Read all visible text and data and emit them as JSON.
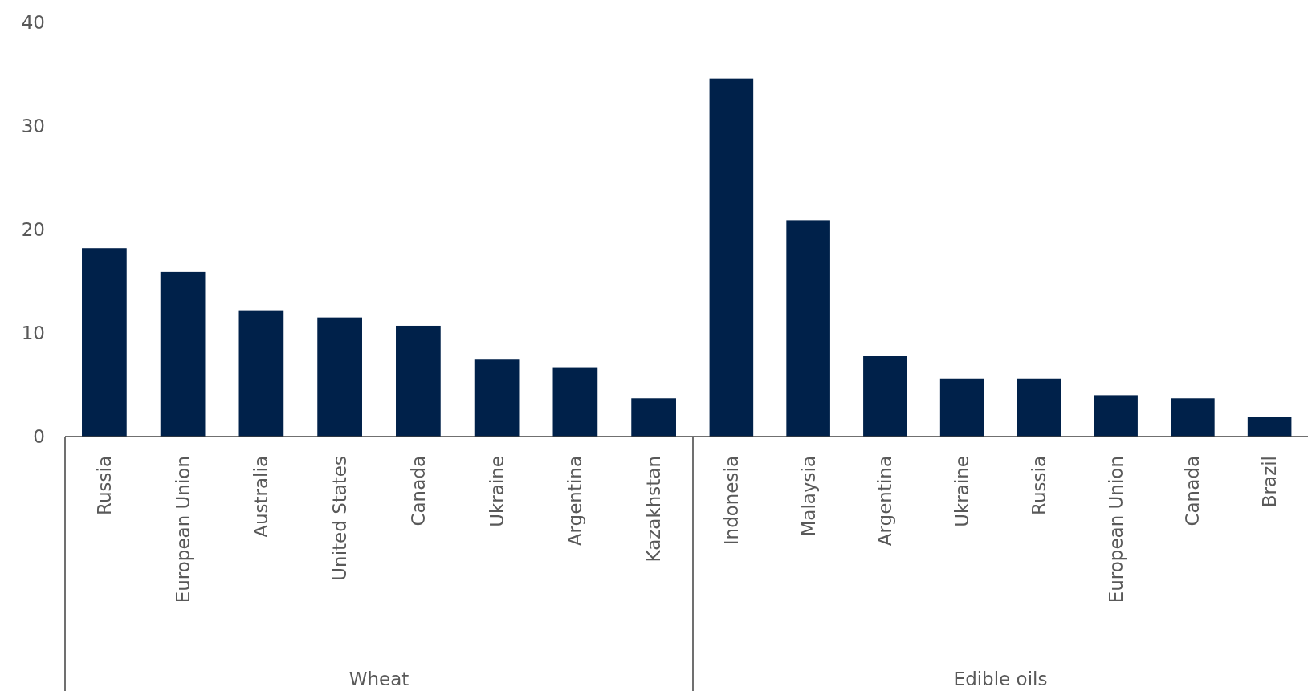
{
  "chart_data": [
    {
      "type": "bar",
      "xlabel": "Wheat",
      "categories": [
        "Russia",
        "European Union",
        "Australia",
        "United States",
        "Canada",
        "Ukraine",
        "Argentina",
        "Kazakhstan"
      ],
      "values": [
        18.2,
        15.9,
        12.2,
        11.5,
        10.7,
        7.5,
        6.7,
        3.7
      ],
      "color": "#00214a",
      "ylim": [
        0,
        40
      ],
      "yticks": [
        0,
        10,
        20,
        30,
        40
      ],
      "grid": false
    },
    {
      "type": "bar",
      "xlabel": "Edible oils",
      "categories": [
        "Indonesia",
        "Malaysia",
        "Argentina",
        "Ukraine",
        "Russia",
        "European Union",
        "Canada",
        "Brazil"
      ],
      "values": [
        34.6,
        20.9,
        7.8,
        5.6,
        5.6,
        4.0,
        3.7,
        1.9
      ],
      "color": "#00214a",
      "ylim": [
        0,
        40
      ],
      "grid": false,
      "tick_labels": "x"
    }
  ]
}
